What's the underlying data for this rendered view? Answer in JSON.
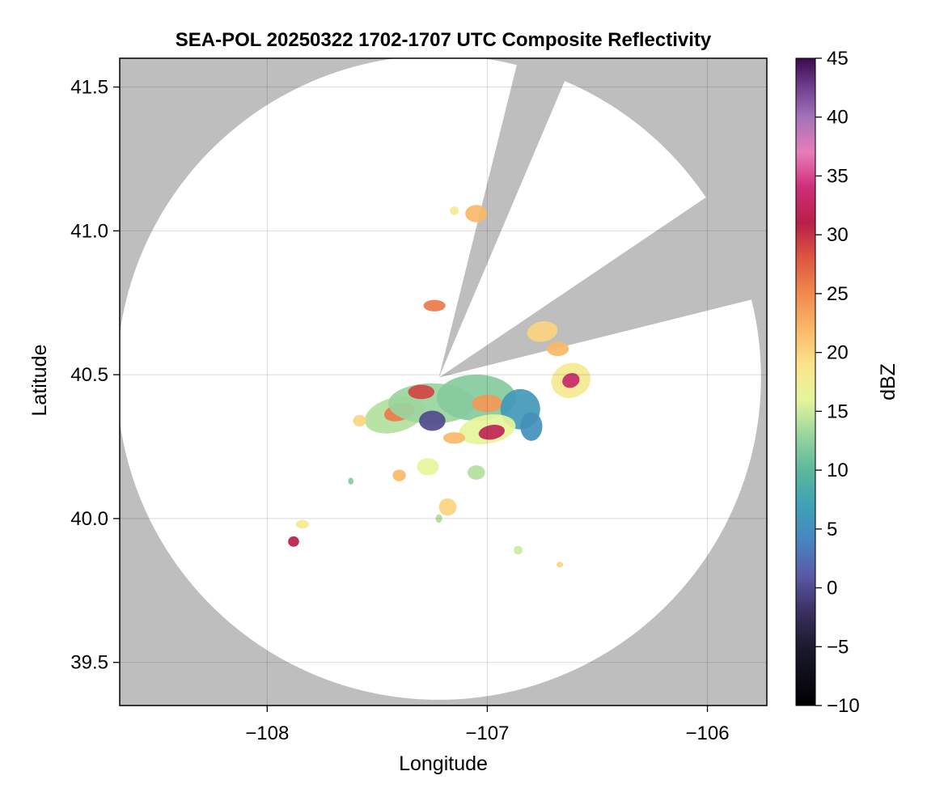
{
  "chart_data": {
    "type": "heatmap",
    "title": "SEA-POL 20250322 1702-1707 UTC Composite Reflectivity",
    "xlabel": "Longitude",
    "ylabel": "Latitude",
    "xlim": [
      -108.67,
      -105.73
    ],
    "ylim": [
      39.35,
      41.6
    ],
    "x_ticks": [
      {
        "value": -108,
        "label": "−108"
      },
      {
        "value": -107,
        "label": "−107"
      },
      {
        "value": -106,
        "label": "−106"
      }
    ],
    "y_ticks": [
      {
        "value": 39.5,
        "label": "39.5"
      },
      {
        "value": 40.0,
        "label": "40.0"
      },
      {
        "value": 40.5,
        "label": "40.5"
      },
      {
        "value": 41.0,
        "label": "41.0"
      },
      {
        "value": 41.5,
        "label": "41.5"
      }
    ],
    "grid": true,
    "background_color": "#bebebe",
    "radar": {
      "center": [
        -107.22,
        40.49
      ],
      "radius_deg_lat": 1.12,
      "blocked_sectors_deg_from_north": [
        [
          14,
          23
        ],
        [
          56,
          76
        ]
      ]
    },
    "colorbar": {
      "label": "dBZ",
      "min": -10,
      "max": 45,
      "ticks": [
        {
          "value": -10,
          "label": "−10"
        },
        {
          "value": -5,
          "label": "−5"
        },
        {
          "value": 0,
          "label": "0"
        },
        {
          "value": 5,
          "label": "5"
        },
        {
          "value": 10,
          "label": "10"
        },
        {
          "value": 15,
          "label": "15"
        },
        {
          "value": 20,
          "label": "20"
        },
        {
          "value": 25,
          "label": "25"
        },
        {
          "value": 30,
          "label": "30"
        },
        {
          "value": 35,
          "label": "35"
        },
        {
          "value": 40,
          "label": "40"
        },
        {
          "value": 45,
          "label": "45"
        }
      ],
      "stops": [
        {
          "value": -10,
          "color": "#000000"
        },
        {
          "value": -5,
          "color": "#1b1a2e"
        },
        {
          "value": -2,
          "color": "#3b3060"
        },
        {
          "value": 1,
          "color": "#5a58a4"
        },
        {
          "value": 4,
          "color": "#4785c0"
        },
        {
          "value": 7,
          "color": "#3ea2b4"
        },
        {
          "value": 10,
          "color": "#5cb89b"
        },
        {
          "value": 13,
          "color": "#9ad59e"
        },
        {
          "value": 16,
          "color": "#e6f59b"
        },
        {
          "value": 19,
          "color": "#fce38a"
        },
        {
          "value": 22,
          "color": "#f9b868"
        },
        {
          "value": 25,
          "color": "#f18a4e"
        },
        {
          "value": 28,
          "color": "#de5641"
        },
        {
          "value": 31,
          "color": "#b91f48"
        },
        {
          "value": 34,
          "color": "#cf2d79"
        },
        {
          "value": 37,
          "color": "#e77dbb"
        },
        {
          "value": 40,
          "color": "#a273b9"
        },
        {
          "value": 42.5,
          "color": "#723e8f"
        },
        {
          "value": 45,
          "color": "#3c0a4e"
        }
      ]
    },
    "cells": [
      {
        "lon": -107.42,
        "lat": 40.36,
        "rx": 0.14,
        "ry": 0.06,
        "rot": -15,
        "dbz": 14
      },
      {
        "lon": -107.4,
        "lat": 40.37,
        "rx": 0.07,
        "ry": 0.03,
        "rot": -15,
        "dbz": 26
      },
      {
        "lon": -107.25,
        "lat": 40.4,
        "rx": 0.2,
        "ry": 0.07,
        "rot": 0,
        "dbz": 13
      },
      {
        "lon": -107.3,
        "lat": 40.44,
        "rx": 0.06,
        "ry": 0.025,
        "rot": 0,
        "dbz": 29
      },
      {
        "lon": -107.05,
        "lat": 40.42,
        "rx": 0.18,
        "ry": 0.08,
        "rot": 0,
        "dbz": 12
      },
      {
        "lon": -107.0,
        "lat": 40.4,
        "rx": 0.07,
        "ry": 0.03,
        "rot": 0,
        "dbz": 24
      },
      {
        "lon": -106.85,
        "lat": 40.38,
        "rx": 0.09,
        "ry": 0.07,
        "rot": 0,
        "dbz": 6
      },
      {
        "lon": -106.8,
        "lat": 40.32,
        "rx": 0.05,
        "ry": 0.05,
        "rot": 0,
        "dbz": 5
      },
      {
        "lon": -107.0,
        "lat": 40.31,
        "rx": 0.13,
        "ry": 0.05,
        "rot": -10,
        "dbz": 16
      },
      {
        "lon": -106.98,
        "lat": 40.3,
        "rx": 0.06,
        "ry": 0.025,
        "rot": -10,
        "dbz": 32
      },
      {
        "lon": -107.25,
        "lat": 40.34,
        "rx": 0.06,
        "ry": 0.035,
        "rot": 0,
        "dbz": 0
      },
      {
        "lon": -107.15,
        "lat": 40.28,
        "rx": 0.05,
        "ry": 0.02,
        "rot": 0,
        "dbz": 22
      },
      {
        "lon": -106.75,
        "lat": 40.65,
        "rx": 0.07,
        "ry": 0.035,
        "rot": -10,
        "dbz": 20
      },
      {
        "lon": -106.62,
        "lat": 40.48,
        "rx": 0.09,
        "ry": 0.06,
        "rot": -20,
        "dbz": 18
      },
      {
        "lon": -106.62,
        "lat": 40.48,
        "rx": 0.04,
        "ry": 0.025,
        "rot": -20,
        "dbz": 33
      },
      {
        "lon": -106.68,
        "lat": 40.59,
        "rx": 0.05,
        "ry": 0.025,
        "rot": 0,
        "dbz": 22
      },
      {
        "lon": -107.05,
        "lat": 41.06,
        "rx": 0.05,
        "ry": 0.03,
        "rot": 0,
        "dbz": 22
      },
      {
        "lon": -107.15,
        "lat": 41.07,
        "rx": 0.02,
        "ry": 0.015,
        "rot": 0,
        "dbz": 18
      },
      {
        "lon": -107.24,
        "lat": 40.74,
        "rx": 0.05,
        "ry": 0.02,
        "rot": 0,
        "dbz": 26
      },
      {
        "lon": -107.58,
        "lat": 40.34,
        "rx": 0.03,
        "ry": 0.02,
        "rot": 0,
        "dbz": 20
      },
      {
        "lon": -107.27,
        "lat": 40.18,
        "rx": 0.05,
        "ry": 0.03,
        "rot": 0,
        "dbz": 16
      },
      {
        "lon": -107.05,
        "lat": 40.16,
        "rx": 0.04,
        "ry": 0.025,
        "rot": 0,
        "dbz": 14
      },
      {
        "lon": -107.4,
        "lat": 40.15,
        "rx": 0.03,
        "ry": 0.02,
        "rot": 0,
        "dbz": 22
      },
      {
        "lon": -107.18,
        "lat": 40.04,
        "rx": 0.04,
        "ry": 0.03,
        "rot": 0,
        "dbz": 20
      },
      {
        "lon": -107.88,
        "lat": 39.92,
        "rx": 0.025,
        "ry": 0.018,
        "rot": 0,
        "dbz": 31
      },
      {
        "lon": -107.84,
        "lat": 39.98,
        "rx": 0.03,
        "ry": 0.015,
        "rot": 0,
        "dbz": 18
      },
      {
        "lon": -106.86,
        "lat": 39.89,
        "rx": 0.02,
        "ry": 0.015,
        "rot": 0,
        "dbz": 15
      },
      {
        "lon": -106.67,
        "lat": 39.84,
        "rx": 0.015,
        "ry": 0.01,
        "rot": 0,
        "dbz": 20
      },
      {
        "lon": -107.22,
        "lat": 40.0,
        "rx": 0.015,
        "ry": 0.015,
        "rot": 0,
        "dbz": 14
      },
      {
        "lon": -107.62,
        "lat": 40.13,
        "rx": 0.012,
        "ry": 0.012,
        "rot": 0,
        "dbz": 12
      }
    ]
  }
}
